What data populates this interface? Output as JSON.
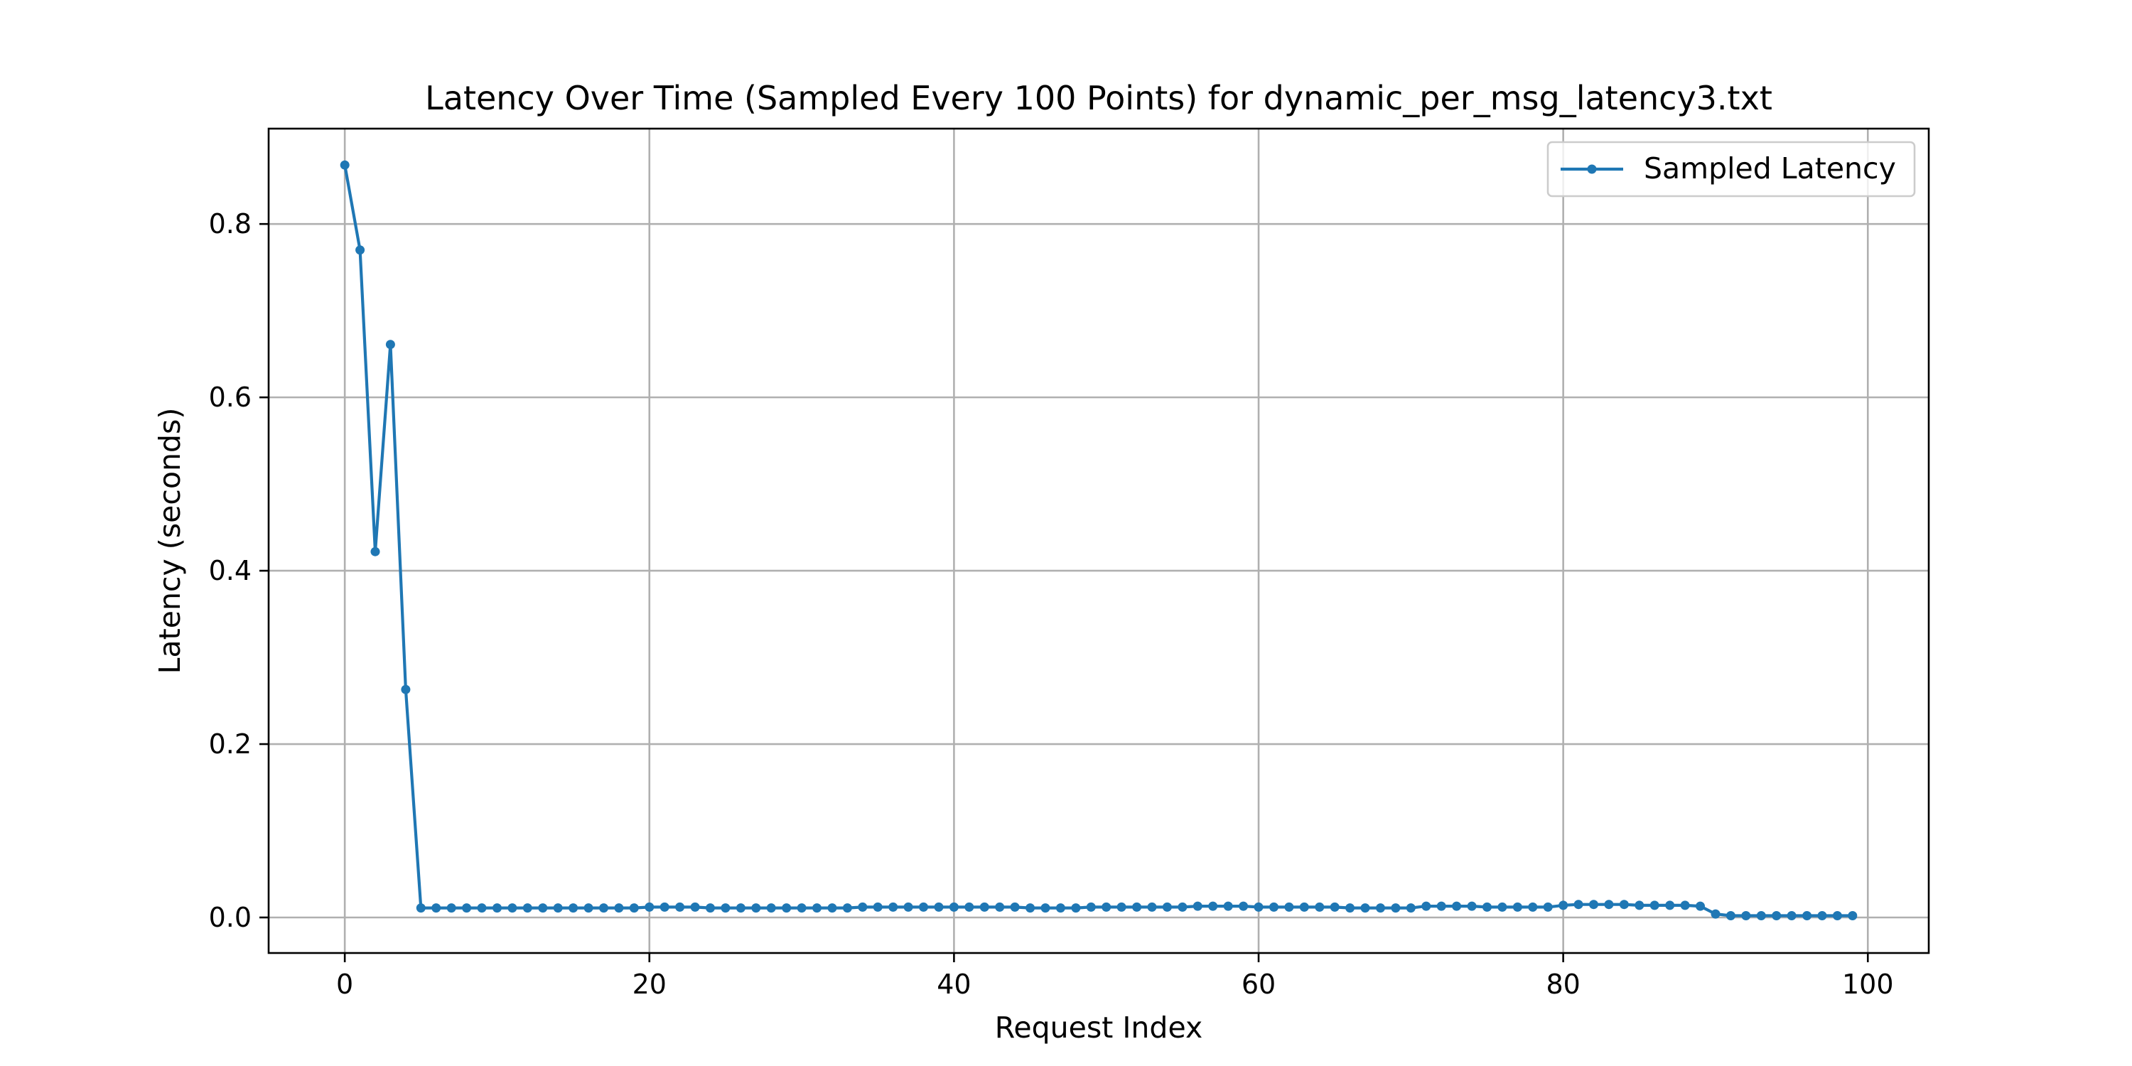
{
  "chart_data": {
    "type": "line",
    "title": "Latency Over Time (Sampled Every 100 Points) for dynamic_per_msg_latency3.txt",
    "xlabel": "Request Index",
    "ylabel": "Latency (seconds)",
    "xlim": [
      -5,
      104
    ],
    "ylim": [
      -0.041,
      0.91
    ],
    "xticks": [
      0,
      20,
      40,
      60,
      80,
      100
    ],
    "yticks": [
      0.0,
      0.2,
      0.4,
      0.6,
      0.8
    ],
    "xtick_labels": [
      "0",
      "20",
      "40",
      "60",
      "80",
      "100"
    ],
    "ytick_labels": [
      "0.0",
      "0.2",
      "0.4",
      "0.6",
      "0.8"
    ],
    "grid": true,
    "legend_position": "top-right",
    "series": [
      {
        "name": "Sampled Latency",
        "color": "#1f77b4",
        "marker": "circle",
        "x": [
          0,
          1,
          2,
          3,
          4,
          5,
          6,
          7,
          8,
          9,
          10,
          11,
          12,
          13,
          14,
          15,
          16,
          17,
          18,
          19,
          20,
          21,
          22,
          23,
          24,
          25,
          26,
          27,
          28,
          29,
          30,
          31,
          32,
          33,
          34,
          35,
          36,
          37,
          38,
          39,
          40,
          41,
          42,
          43,
          44,
          45,
          46,
          47,
          48,
          49,
          50,
          51,
          52,
          53,
          54,
          55,
          56,
          57,
          58,
          59,
          60,
          61,
          62,
          63,
          64,
          65,
          66,
          67,
          68,
          69,
          70,
          71,
          72,
          73,
          74,
          75,
          76,
          77,
          78,
          79,
          80,
          81,
          82,
          83,
          84,
          85,
          86,
          87,
          88,
          89,
          90,
          91,
          92,
          93,
          94,
          95,
          96,
          97,
          98,
          99
        ],
        "y": [
          0.868,
          0.77,
          0.422,
          0.661,
          0.263,
          0.011,
          0.011,
          0.011,
          0.011,
          0.011,
          0.011,
          0.011,
          0.011,
          0.011,
          0.011,
          0.011,
          0.011,
          0.011,
          0.011,
          0.011,
          0.012,
          0.012,
          0.012,
          0.012,
          0.011,
          0.011,
          0.011,
          0.011,
          0.011,
          0.011,
          0.011,
          0.011,
          0.011,
          0.011,
          0.012,
          0.012,
          0.012,
          0.012,
          0.012,
          0.012,
          0.012,
          0.012,
          0.012,
          0.012,
          0.012,
          0.011,
          0.011,
          0.011,
          0.011,
          0.012,
          0.012,
          0.012,
          0.012,
          0.012,
          0.012,
          0.012,
          0.013,
          0.013,
          0.013,
          0.013,
          0.012,
          0.012,
          0.012,
          0.012,
          0.012,
          0.012,
          0.011,
          0.011,
          0.011,
          0.011,
          0.011,
          0.013,
          0.013,
          0.013,
          0.013,
          0.012,
          0.012,
          0.012,
          0.012,
          0.012,
          0.014,
          0.015,
          0.015,
          0.015,
          0.015,
          0.014,
          0.014,
          0.014,
          0.014,
          0.013,
          0.004,
          0.002,
          0.002,
          0.002,
          0.002,
          0.002,
          0.002,
          0.002,
          0.002,
          0.002
        ]
      }
    ]
  }
}
